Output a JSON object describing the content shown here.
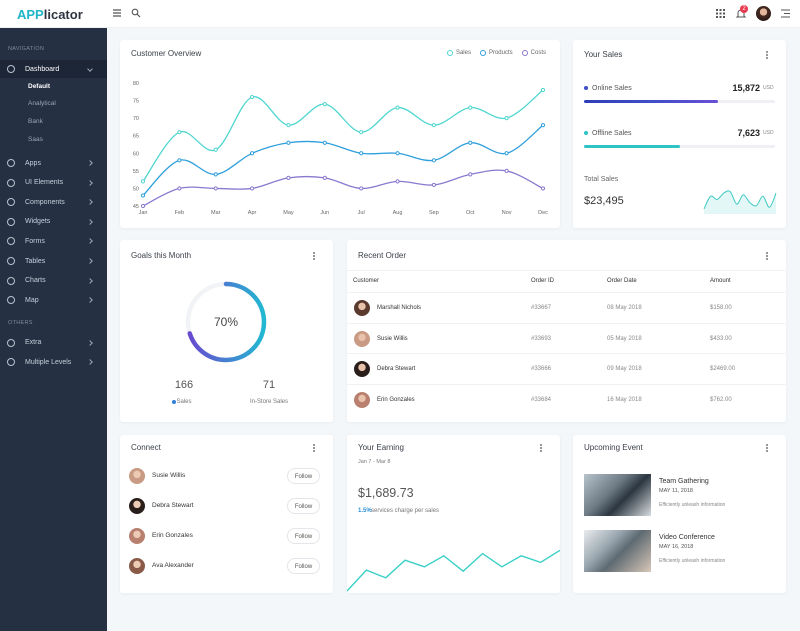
{
  "header": {
    "logo_accent": "APP",
    "logo_rest": "licator",
    "notification_count": 2
  },
  "sidebar": {
    "sections": [
      {
        "title": "NAVIGATION",
        "items": [
          {
            "label": "Dashboard",
            "children": [
              "Default",
              "Analytical",
              "Bank",
              "Saas"
            ]
          },
          {
            "label": "Apps"
          },
          {
            "label": "UI Elements"
          },
          {
            "label": "Components"
          },
          {
            "label": "Widgets"
          },
          {
            "label": "Forms"
          },
          {
            "label": "Tables"
          },
          {
            "label": "Charts"
          },
          {
            "label": "Map"
          }
        ]
      },
      {
        "title": "OTHERS",
        "items": [
          {
            "label": "Extra"
          },
          {
            "label": "Multiple Levels"
          }
        ]
      }
    ]
  },
  "chart_data": {
    "type": "line",
    "title": "Customer Overview",
    "categories": [
      "Jan",
      "Feb",
      "Mar",
      "Apr",
      "May",
      "Jun",
      "Jul",
      "Aug",
      "Sep",
      "Oct",
      "Nov",
      "Dec"
    ],
    "series": [
      {
        "name": "Sales",
        "color": "#4fd6cf",
        "values": [
          52,
          66,
          61,
          76,
          68,
          74,
          66,
          73,
          68,
          73,
          70,
          78
        ]
      },
      {
        "name": "Products",
        "color": "#2f9fdc",
        "values": [
          48,
          58,
          54,
          60,
          63,
          63,
          60,
          60,
          58,
          63,
          60,
          68
        ]
      },
      {
        "name": "Costs",
        "color": "#8a78cf",
        "values": [
          45,
          50,
          50,
          50,
          53,
          53,
          50,
          52,
          51,
          54,
          55,
          50
        ]
      }
    ],
    "ylim": [
      45,
      80
    ],
    "yticks": [
      45,
      50,
      55,
      60,
      65,
      70,
      75,
      80
    ],
    "grid": false,
    "legend": "top-right"
  },
  "your_sales": {
    "title": "Your Sales",
    "items": [
      {
        "label": "Online Sales",
        "amount": "15,872",
        "unit": "USD",
        "progress": 70,
        "color": "#3d4fc8"
      },
      {
        "label": "Offline Sales",
        "amount": "7,623",
        "unit": "USD",
        "progress": 50,
        "color": "#2ec4c6"
      }
    ],
    "total_label": "Total Sales",
    "total": "$23,495",
    "sparkline": {
      "values": [
        2,
        10,
        8,
        12,
        13,
        5,
        11,
        6,
        4,
        10,
        3,
        12
      ],
      "ylim": [
        0,
        14
      ],
      "color": "#3cc9c3"
    }
  },
  "goals": {
    "title": "Goals this Month",
    "value": 70,
    "value_label": "70%",
    "stats": [
      {
        "value": 166,
        "label": "Sales"
      },
      {
        "value": 71,
        "label": "In-Store Sales"
      }
    ]
  },
  "recent_order": {
    "title": "Recent Order",
    "columns": [
      "Customer",
      "Order ID",
      "Order Date",
      "Amount"
    ],
    "rows": [
      [
        "Marshall Nichols",
        "#33667",
        "08 May 2018",
        "$158.00"
      ],
      [
        "Susie Willis",
        "#33693",
        "05 May 2018",
        "$433.00"
      ],
      [
        "Debra Stewart",
        "#33666",
        "09 May 2018",
        "$2469.00"
      ],
      [
        "Erin Gonzales",
        "#33684",
        "16 May 2018",
        "$762.00"
      ]
    ]
  },
  "connect": {
    "title": "Connect",
    "people": [
      "Susie Willis",
      "Debra Stewart",
      "Erin Gonzales",
      "Ava Alexander"
    ],
    "button": "Follow"
  },
  "earning": {
    "title": "Your Earning",
    "period": "Jan 7 - Mar 8",
    "amount": "$1,689.73",
    "rate": "1.5%",
    "rate_text": "services charge per sales",
    "sparkline": {
      "values": [
        0,
        19,
        12,
        28,
        22,
        32,
        18,
        34,
        22,
        32,
        26,
        37
      ],
      "ylim": [
        0,
        40
      ],
      "color": "#3cd0c8"
    }
  },
  "events": {
    "title": "Upcoming Event",
    "items": [
      {
        "name": "Team Gathering",
        "date": "MAY 11, 2018",
        "text": "Efficiently unleash information"
      },
      {
        "name": "Video Conference",
        "date": "MAY 16, 2018",
        "text": "Efficiently unleash information"
      }
    ]
  }
}
